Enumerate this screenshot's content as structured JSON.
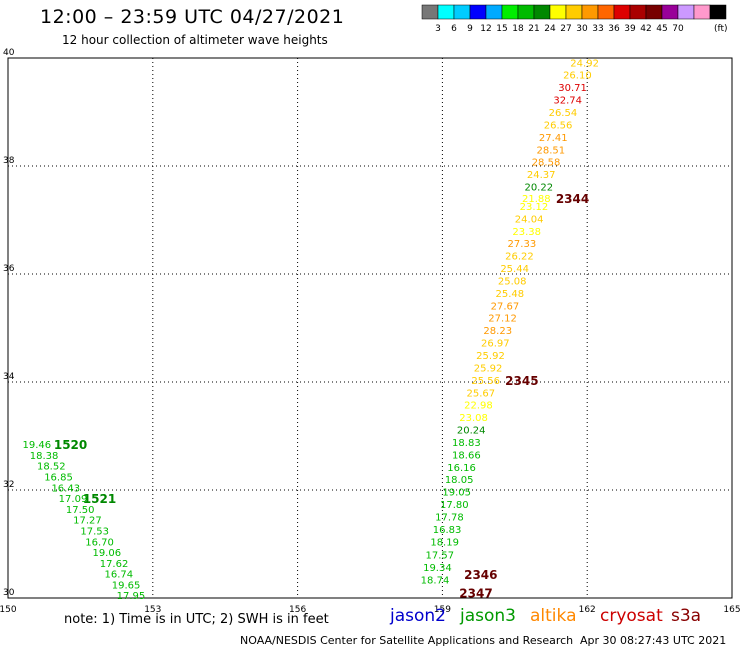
{
  "header": {
    "title": "12:00 – 23:59 UTC 04/27/2021",
    "subtitle": "12 hour collection of altimeter wave heights"
  },
  "colorbar": {
    "colors": [
      "#777777",
      "#00ffff",
      "#00ccff",
      "#0000ff",
      "#00aaff",
      "#00ee00",
      "#00bb00",
      "#008800",
      "#ffff00",
      "#ffcc00",
      "#ff9900",
      "#ff6600",
      "#dd0000",
      "#aa0000",
      "#770000",
      "#990099",
      "#cc99ff",
      "#ff99cc",
      "#000000"
    ],
    "labels": [
      "3",
      "6",
      "9",
      "12",
      "15",
      "18",
      "21",
      "24",
      "27",
      "30",
      "33",
      "36",
      "39",
      "42",
      "45",
      "70"
    ],
    "unit": "(ft)"
  },
  "footer": {
    "note": "note:  1) Time is in UTC;  2) SWH is in feet",
    "credit": "NOAA/NESDIS Center for Satellite Applications and Research",
    "timestamp": "Apr 30 08:27:43 UTC 2021"
  },
  "satellites": [
    {
      "name": "jason2",
      "color": "#0000cc"
    },
    {
      "name": "jason3",
      "color": "#009900"
    },
    {
      "name": "altika",
      "color": "#ff8800"
    },
    {
      "name": "cryosat",
      "color": "#cc0000"
    },
    {
      "name": "s3a",
      "color": "#880000"
    }
  ],
  "chart_data": {
    "type": "scatter",
    "xlim": [
      150,
      165
    ],
    "ylim": [
      30,
      40
    ],
    "x_ticks": [
      "150",
      "153",
      "156",
      "159",
      "162",
      "165"
    ],
    "y_ticks": [
      "30",
      "32",
      "34",
      "36",
      "38",
      "40"
    ],
    "grid": true,
    "labels": [
      {
        "x": 161.65,
        "y": 39.92,
        "text": "24.92",
        "color": "#ffcc00"
      },
      {
        "x": 161.5,
        "y": 39.69,
        "text": "26.10",
        "color": "#ffcc00"
      },
      {
        "x": 161.4,
        "y": 39.46,
        "text": "30.71",
        "color": "#dd0000"
      },
      {
        "x": 161.3,
        "y": 39.23,
        "text": "32.74",
        "color": "#dd0000"
      },
      {
        "x": 161.2,
        "y": 39.0,
        "text": "26.54",
        "color": "#ffcc00"
      },
      {
        "x": 161.1,
        "y": 38.77,
        "text": "26.56",
        "color": "#ffcc00"
      },
      {
        "x": 161.0,
        "y": 38.54,
        "text": "27.41",
        "color": "#ff9900"
      },
      {
        "x": 160.95,
        "y": 38.31,
        "text": "28.51",
        "color": "#ff9900"
      },
      {
        "x": 160.85,
        "y": 38.08,
        "text": "28.58",
        "color": "#ff9900"
      },
      {
        "x": 160.75,
        "y": 37.85,
        "text": "24.37",
        "color": "#ffcc00"
      },
      {
        "x": 160.7,
        "y": 37.62,
        "text": "20.22",
        "color": "#008800"
      },
      {
        "x": 160.65,
        "y": 37.41,
        "text": "21.88",
        "color": "#ffff00"
      },
      {
        "x": 160.6,
        "y": 37.26,
        "text": "23.12",
        "color": "#ffff00"
      },
      {
        "x": 160.5,
        "y": 37.03,
        "text": "24.04",
        "color": "#ffcc00"
      },
      {
        "x": 160.45,
        "y": 36.8,
        "text": "23.38",
        "color": "#ffff00"
      },
      {
        "x": 160.35,
        "y": 36.57,
        "text": "27.33",
        "color": "#ff9900"
      },
      {
        "x": 160.3,
        "y": 36.34,
        "text": "26.22",
        "color": "#ffcc00"
      },
      {
        "x": 160.2,
        "y": 36.11,
        "text": "25.44",
        "color": "#ffcc00"
      },
      {
        "x": 160.15,
        "y": 35.88,
        "text": "25.08",
        "color": "#ffcc00"
      },
      {
        "x": 160.1,
        "y": 35.65,
        "text": "25.48",
        "color": "#ffcc00"
      },
      {
        "x": 160.0,
        "y": 35.42,
        "text": "27.67",
        "color": "#ff9900"
      },
      {
        "x": 159.95,
        "y": 35.19,
        "text": "27.12",
        "color": "#ff9900"
      },
      {
        "x": 159.85,
        "y": 34.96,
        "text": "28.23",
        "color": "#ff9900"
      },
      {
        "x": 159.8,
        "y": 34.73,
        "text": "26.97",
        "color": "#ffcc00"
      },
      {
        "x": 159.7,
        "y": 34.5,
        "text": "25.92",
        "color": "#ffcc00"
      },
      {
        "x": 159.65,
        "y": 34.27,
        "text": "25.92",
        "color": "#ffcc00"
      },
      {
        "x": 159.6,
        "y": 34.04,
        "text": "25.56",
        "color": "#ffcc00"
      },
      {
        "x": 159.5,
        "y": 33.81,
        "text": "25.67",
        "color": "#ffcc00"
      },
      {
        "x": 159.45,
        "y": 33.58,
        "text": "22.98",
        "color": "#ffff00"
      },
      {
        "x": 159.35,
        "y": 33.35,
        "text": "23.08",
        "color": "#ffff00"
      },
      {
        "x": 159.3,
        "y": 33.12,
        "text": "20.24",
        "color": "#008800"
      },
      {
        "x": 159.2,
        "y": 32.89,
        "text": "18.83",
        "color": "#00bb00"
      },
      {
        "x": 159.2,
        "y": 32.66,
        "text": "18.66",
        "color": "#00bb00"
      },
      {
        "x": 159.1,
        "y": 32.43,
        "text": "16.16",
        "color": "#00bb00"
      },
      {
        "x": 159.05,
        "y": 32.2,
        "text": "18.05",
        "color": "#00bb00"
      },
      {
        "x": 159.0,
        "y": 31.97,
        "text": "19.05",
        "color": "#00bb00"
      },
      {
        "x": 158.95,
        "y": 31.74,
        "text": "17.80",
        "color": "#00bb00"
      },
      {
        "x": 158.85,
        "y": 31.51,
        "text": "17.78",
        "color": "#00bb00"
      },
      {
        "x": 158.8,
        "y": 31.28,
        "text": "16.83",
        "color": "#00bb00"
      },
      {
        "x": 158.75,
        "y": 31.05,
        "text": "18.19",
        "color": "#00bb00"
      },
      {
        "x": 158.65,
        "y": 30.81,
        "text": "17.57",
        "color": "#00bb00"
      },
      {
        "x": 158.6,
        "y": 30.57,
        "text": "19.34",
        "color": "#00bb00"
      },
      {
        "x": 158.55,
        "y": 30.34,
        "text": "18.74",
        "color": "#00bb00"
      },
      {
        "x": 150.3,
        "y": 32.85,
        "text": "19.46",
        "color": "#00bb00"
      },
      {
        "x": 150.45,
        "y": 32.65,
        "text": "18.38",
        "color": "#00bb00"
      },
      {
        "x": 150.6,
        "y": 32.45,
        "text": "18.52",
        "color": "#00bb00"
      },
      {
        "x": 150.75,
        "y": 32.25,
        "text": "16.85",
        "color": "#00bb00"
      },
      {
        "x": 150.9,
        "y": 32.05,
        "text": "16.43",
        "color": "#00bb00"
      },
      {
        "x": 151.05,
        "y": 31.85,
        "text": "17.09",
        "color": "#00bb00"
      },
      {
        "x": 151.2,
        "y": 31.65,
        "text": "17.50",
        "color": "#00bb00"
      },
      {
        "x": 151.35,
        "y": 31.45,
        "text": "17.27",
        "color": "#00bb00"
      },
      {
        "x": 151.5,
        "y": 31.25,
        "text": "17.53",
        "color": "#00bb00"
      },
      {
        "x": 151.6,
        "y": 31.05,
        "text": "16.70",
        "color": "#00bb00"
      },
      {
        "x": 151.75,
        "y": 30.85,
        "text": "19.06",
        "color": "#00bb00"
      },
      {
        "x": 151.9,
        "y": 30.65,
        "text": "17.62",
        "color": "#00bb00"
      },
      {
        "x": 152.0,
        "y": 30.45,
        "text": "16.74",
        "color": "#00bb00"
      },
      {
        "x": 152.15,
        "y": 30.25,
        "text": "19.65",
        "color": "#00bb00"
      },
      {
        "x": 152.25,
        "y": 30.06,
        "text": "17.95",
        "color": "#00bb00"
      }
    ],
    "times": [
      {
        "x": 150.95,
        "y": 32.85,
        "text": "1520",
        "color": "#008800"
      },
      {
        "x": 151.55,
        "y": 31.85,
        "text": "1521",
        "color": "#008800"
      },
      {
        "x": 161.35,
        "y": 37.41,
        "text": "2344",
        "color": "#660000"
      },
      {
        "x": 160.3,
        "y": 34.04,
        "text": "2345",
        "color": "#660000"
      },
      {
        "x": 159.45,
        "y": 30.44,
        "text": "2346",
        "color": "#660000"
      },
      {
        "x": 159.35,
        "y": 30.1,
        "text": "2347",
        "color": "#660000"
      }
    ]
  }
}
